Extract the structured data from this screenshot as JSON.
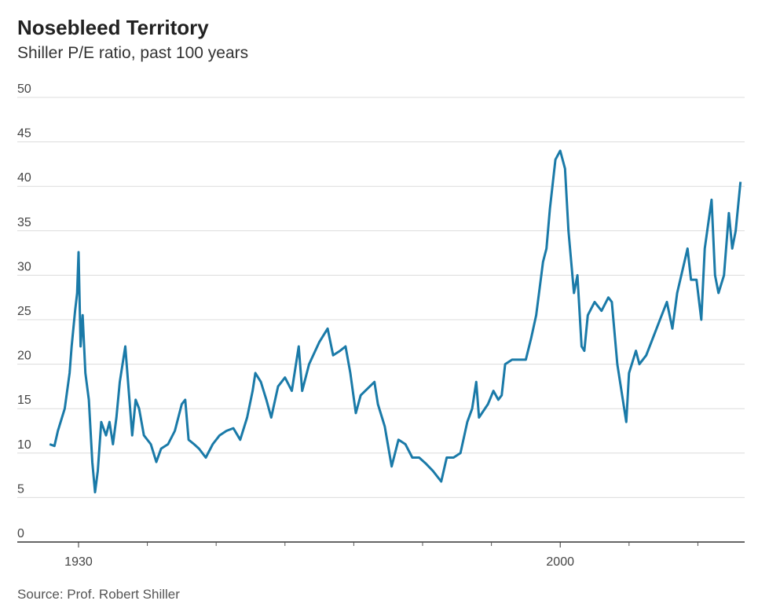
{
  "chart_data": {
    "type": "line",
    "title": "Nosebleed Territory",
    "subtitle": "Shiller P/E ratio, past 100 years",
    "source": "Source: Prof. Robert Shiller",
    "x": [
      1925.8,
      1926.5,
      1927,
      1928,
      1928.7,
      1929,
      1929.5,
      1929.8,
      1930,
      1930.3,
      1930.6,
      1931,
      1931.5,
      1932,
      1932.4,
      1932.8,
      1933.3,
      1934,
      1934.5,
      1935,
      1935.5,
      1936,
      1936.8,
      1937.3,
      1937.8,
      1938.3,
      1938.8,
      1939.5,
      1940.5,
      1941.3,
      1942,
      1943,
      1944,
      1945,
      1945.5,
      1946,
      1946.8,
      1947.5,
      1948.5,
      1949.5,
      1950.5,
      1951.5,
      1952.5,
      1953.5,
      1954.5,
      1955.3,
      1955.7,
      1956.5,
      1957.3,
      1958,
      1959,
      1960,
      1961,
      1962,
      1962.5,
      1963.5,
      1965,
      1966.2,
      1967,
      1968,
      1968.8,
      1969.5,
      1970.3,
      1971,
      1973,
      1973.5,
      1974.5,
      1975.5,
      1976.5,
      1977.5,
      1978.5,
      1979.5,
      1980.5,
      1981.5,
      1982.7,
      1983.5,
      1984.5,
      1985.5,
      1986.5,
      1987.2,
      1987.8,
      1988.2,
      1989.5,
      1990.3,
      1991,
      1991.5,
      1992,
      1993,
      1994,
      1995,
      1995.8,
      1996.5,
      1997.5,
      1998,
      1998.5,
      1999.3,
      2000,
      2000.7,
      2001.2,
      2002,
      2002.5,
      2003.1,
      2003.5,
      2004,
      2005,
      2006,
      2007,
      2007.5,
      2008.3,
      2009.6,
      2010,
      2011,
      2011.5,
      2012.5,
      2013.5,
      2014.5,
      2015.5,
      2016.3,
      2017,
      2018.5,
      2019,
      2019.8,
      2020.5,
      2021,
      2022,
      2022.5,
      2023,
      2023.8,
      2024.5,
      2025,
      2025.5,
      2026.2
    ],
    "series": [
      {
        "name": "Shiller P/E",
        "color": "#1a7aa8",
        "values": [
          11,
          10.8,
          12.5,
          15,
          19,
          22,
          26,
          28,
          32.6,
          22,
          25.5,
          19,
          16,
          9,
          5.6,
          8,
          13.5,
          12,
          13.5,
          11,
          14,
          18,
          22,
          17,
          12,
          16,
          15,
          12,
          11,
          9,
          10.5,
          11,
          12.5,
          15.5,
          16,
          11.5,
          11,
          10.5,
          9.5,
          11,
          12,
          12.5,
          12.8,
          11.5,
          14,
          17,
          19,
          18,
          16,
          14,
          17.5,
          18.5,
          17,
          22,
          17,
          20,
          22.5,
          24,
          21,
          21.5,
          22,
          19,
          14.5,
          16.5,
          18,
          15.5,
          13,
          8.5,
          11.5,
          11,
          9.5,
          9.5,
          8.8,
          8,
          6.8,
          9.5,
          9.5,
          10,
          13.5,
          15,
          18,
          14,
          15.5,
          17,
          16,
          16.5,
          20,
          20.5,
          20.5,
          20.5,
          23,
          25.5,
          31.5,
          33,
          37.5,
          43,
          44,
          42,
          35,
          28,
          30,
          22,
          21.5,
          25.5,
          27,
          26,
          27.5,
          27,
          20,
          13.5,
          19,
          21.5,
          20,
          21,
          23,
          25,
          27,
          24,
          28,
          33,
          29.5,
          29.5,
          25,
          33,
          38.5,
          30,
          28,
          30,
          37,
          33,
          35,
          40.5
        ]
      }
    ],
    "xlim": [
      1921.1,
      2026.8
    ],
    "xticks": [
      1930,
      2000
    ],
    "xminor_ticks": [
      1940,
      1950,
      1960,
      1970,
      1980,
      1990,
      2010,
      2020
    ],
    "ylim": [
      0,
      50
    ],
    "yticks": [
      0,
      5,
      10,
      15,
      20,
      25,
      30,
      35,
      40,
      45,
      50
    ],
    "grid": true
  }
}
